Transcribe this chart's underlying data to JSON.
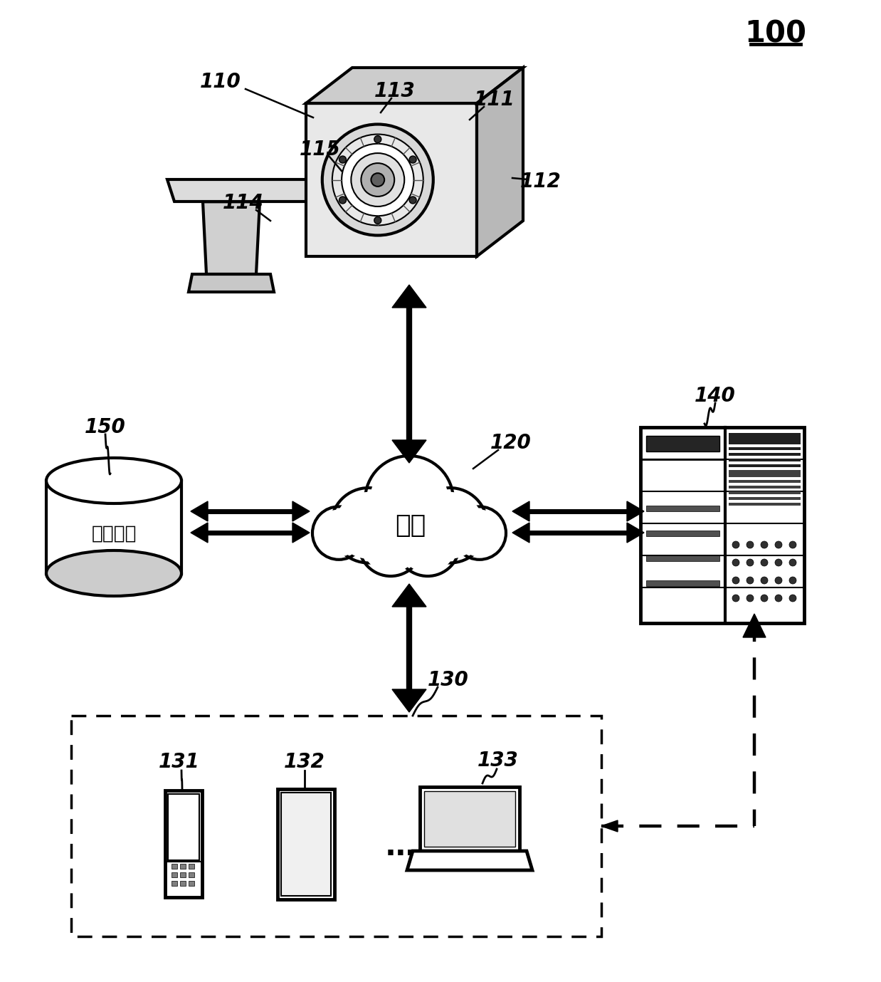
{
  "title": "100",
  "bg_color": "#ffffff",
  "label_110": "110",
  "label_111": "111",
  "label_112": "112",
  "label_113": "113",
  "label_114": "114",
  "label_115": "115",
  "label_120": "120",
  "label_130": "130",
  "label_131": "131",
  "label_132": "132",
  "label_133": "133",
  "label_140": "140",
  "label_150": "150",
  "network_text": "网络",
  "storage_text": "存储设备"
}
